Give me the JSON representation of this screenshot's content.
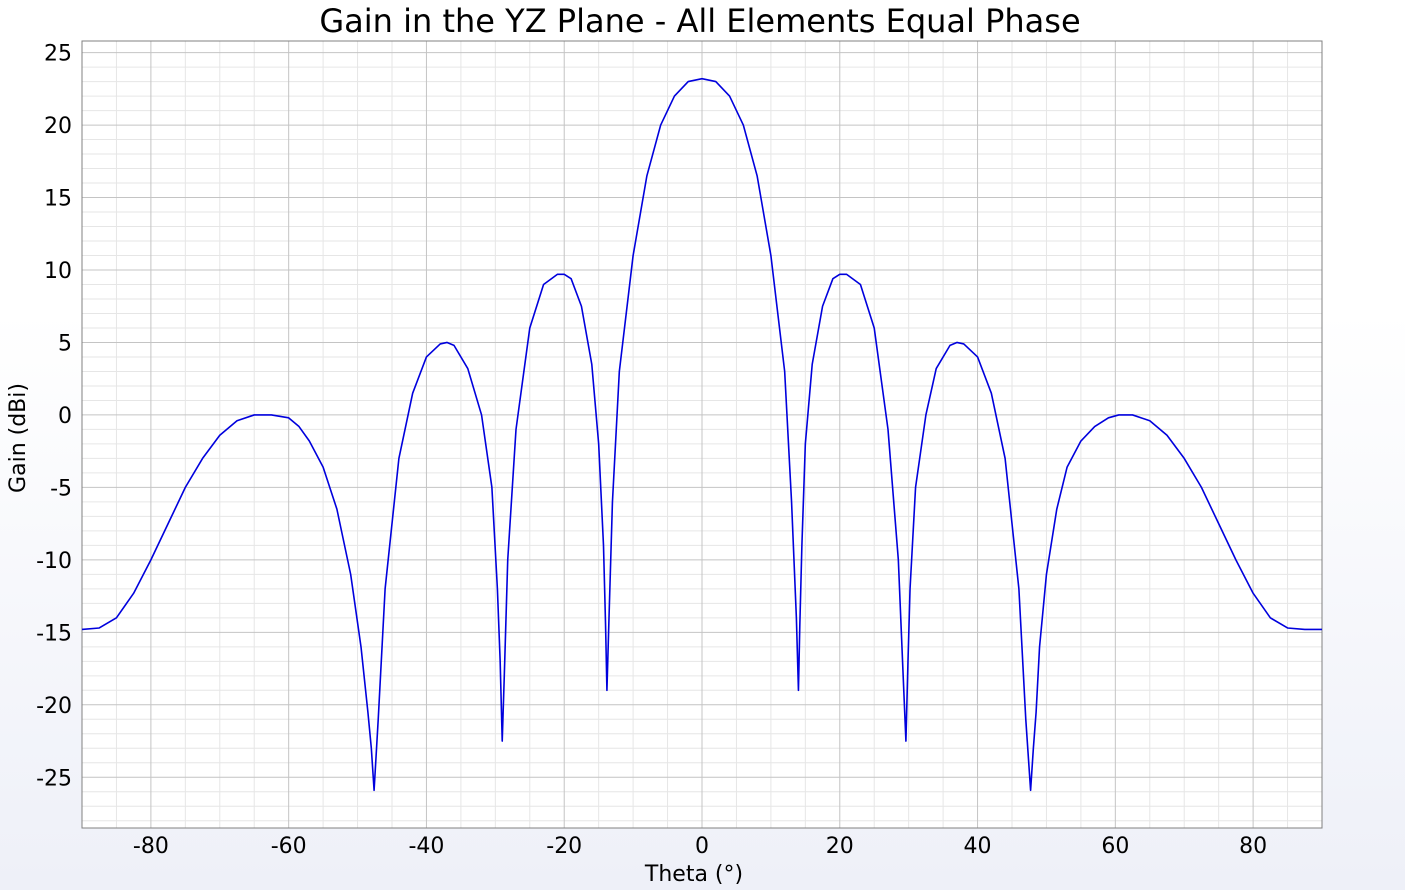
{
  "chart_data": {
    "type": "line",
    "title": "Gain in the YZ Plane - All Elements Equal Phase",
    "xlabel": "Theta (°)",
    "ylabel": "Gain (dBi)",
    "xlim": [
      -90,
      90
    ],
    "ylim": [
      -28.5,
      25.8
    ],
    "xticks": [
      -80,
      -60,
      -40,
      -20,
      0,
      20,
      40,
      60,
      80
    ],
    "xtick_labels": [
      "-80",
      "-60",
      "-40",
      "-20",
      "0",
      "20",
      "40",
      "60",
      "80"
    ],
    "yticks": [
      -25,
      -20,
      -15,
      -10,
      -5,
      0,
      5,
      10,
      15,
      20,
      25
    ],
    "ytick_labels": [
      "-25",
      "-20",
      "-15",
      "-10",
      "-5",
      "0",
      "5",
      "10",
      "15",
      "20",
      "25"
    ],
    "grid": true,
    "minor_grid": true,
    "legend": "none",
    "series": [
      {
        "color": "#0000dd",
        "x": [
          -90,
          -87.5,
          -85,
          -82.5,
          -80,
          -77.5,
          -75,
          -72.5,
          -70,
          -67.5,
          -65,
          -62.5,
          -60,
          -58.5,
          -57,
          -55,
          -53,
          -51,
          -49.5,
          -48.5,
          -48.0,
          -47.6,
          -47.0,
          -46.0,
          -44.0,
          -42.0,
          -40.0,
          -38.0,
          -37.0,
          -36.0,
          -34.0,
          -32.0,
          -30.5,
          -29.7,
          -29.3,
          -29.0,
          -28.7,
          -28.2,
          -27.0,
          -25.0,
          -23.0,
          -21.0,
          -20.0,
          -19.0,
          -17.5,
          -16.0,
          -15.0,
          -14.3,
          -14.0,
          -13.8,
          -13.5,
          -13.0,
          -12.0,
          -10.0,
          -8.0,
          -6.0,
          -4.0,
          -2.0,
          0.0,
          2.0,
          4.0,
          6.0,
          8.0,
          10.0,
          12.0,
          13.0,
          13.7,
          14.0,
          14.2,
          14.5,
          15.0,
          16.0,
          17.5,
          19.0,
          20.0,
          21.0,
          23.0,
          25.0,
          27.0,
          28.5,
          29.2,
          29.6,
          29.9,
          30.2,
          31.0,
          32.5,
          34.0,
          36.0,
          37.0,
          38.0,
          40.0,
          42.0,
          44.0,
          46.0,
          47.0,
          47.7,
          48.1,
          48.5,
          49.0,
          50.0,
          51.5,
          53.0,
          55.0,
          57.0,
          59.0,
          60.5,
          62.5,
          65.0,
          67.5,
          70.0,
          72.5,
          75.0,
          77.5,
          80.0,
          82.5,
          85.0,
          87.5,
          90.0
        ],
        "y": [
          -14.8,
          -14.7,
          -14.0,
          -12.3,
          -10.0,
          -7.5,
          -5.0,
          -3.0,
          -1.4,
          -0.4,
          0.0,
          0.0,
          -0.2,
          -0.8,
          -1.8,
          -3.6,
          -6.5,
          -11.0,
          -16.0,
          -20.5,
          -23.0,
          -25.9,
          -21.0,
          -12.0,
          -3.0,
          1.5,
          4.0,
          4.9,
          5.0,
          4.8,
          3.2,
          0.0,
          -5.0,
          -12.0,
          -17.0,
          -22.5,
          -18.0,
          -10.0,
          -1.0,
          6.0,
          9.0,
          9.7,
          9.7,
          9.4,
          7.5,
          3.5,
          -2.0,
          -9.0,
          -14.5,
          -19.0,
          -14.0,
          -6.0,
          3.0,
          11.0,
          16.5,
          20.0,
          22.0,
          23.0,
          23.2,
          23.0,
          22.0,
          20.0,
          16.5,
          11.0,
          3.0,
          -6.0,
          -14.0,
          -19.0,
          -14.5,
          -9.0,
          -2.0,
          3.5,
          7.5,
          9.4,
          9.7,
          9.7,
          9.0,
          6.0,
          -1.0,
          -10.0,
          -18.0,
          -22.5,
          -17.0,
          -12.0,
          -5.0,
          0.0,
          3.2,
          4.8,
          5.0,
          4.9,
          4.0,
          1.5,
          -3.0,
          -12.0,
          -21.0,
          -25.9,
          -23.0,
          -20.5,
          -16.0,
          -11.0,
          -6.5,
          -3.6,
          -1.8,
          -0.8,
          -0.2,
          0.0,
          0.0,
          -0.4,
          -1.4,
          -3.0,
          -5.0,
          -7.5,
          -10.0,
          -12.3,
          -14.0,
          -14.7,
          -14.8,
          -14.8
        ]
      }
    ]
  }
}
